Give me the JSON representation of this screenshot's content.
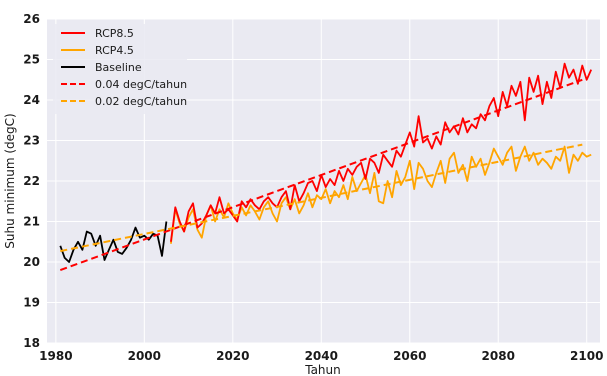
{
  "chart_data": {
    "type": "line",
    "title": "",
    "xlabel": "Tahun",
    "ylabel": "Suhu minimum (degC)",
    "xlim": [
      1978,
      2103
    ],
    "ylim": [
      18,
      26
    ],
    "x_ticks": [
      1980,
      2000,
      2020,
      2040,
      2060,
      2080,
      2100
    ],
    "y_ticks": [
      18,
      19,
      20,
      21,
      22,
      23,
      24,
      25,
      26
    ],
    "grid": true,
    "background": "#eaeaf2",
    "legend_position": "top-left",
    "series": [
      {
        "name": "RCP8.5",
        "style": "solid",
        "color": "#ff0000",
        "x_start": 2006,
        "x_step": 1,
        "values": [
          20.5,
          21.35,
          21.0,
          20.75,
          21.25,
          21.45,
          20.85,
          20.95,
          21.15,
          21.4,
          21.2,
          21.6,
          21.2,
          21.3,
          21.15,
          21.0,
          21.5,
          21.35,
          21.55,
          21.4,
          21.3,
          21.5,
          21.6,
          21.45,
          21.35,
          21.6,
          21.75,
          21.3,
          21.9,
          21.5,
          21.7,
          21.95,
          22.0,
          21.75,
          22.15,
          21.85,
          22.05,
          21.9,
          22.25,
          22.0,
          22.3,
          22.15,
          22.35,
          22.45,
          22.05,
          22.55,
          22.45,
          22.2,
          22.65,
          22.5,
          22.35,
          22.75,
          22.6,
          22.9,
          23.2,
          22.85,
          23.6,
          22.95,
          23.05,
          22.8,
          23.1,
          22.9,
          23.45,
          23.2,
          23.35,
          23.15,
          23.55,
          23.2,
          23.4,
          23.3,
          23.65,
          23.5,
          23.85,
          24.05,
          23.6,
          24.2,
          23.85,
          24.35,
          24.1,
          24.45,
          23.5,
          24.55,
          24.2,
          24.6,
          23.9,
          24.45,
          24.05,
          24.7,
          24.3,
          24.9,
          24.55,
          24.75,
          24.4,
          24.85,
          24.5,
          24.75
        ]
      },
      {
        "name": "RCP4.5",
        "style": "solid",
        "color": "#ffa500",
        "x_start": 2006,
        "x_step": 1,
        "values": [
          20.45,
          21.3,
          20.95,
          20.75,
          21.1,
          21.3,
          20.8,
          20.6,
          21.15,
          21.4,
          21.0,
          21.3,
          21.1,
          21.45,
          21.2,
          21.05,
          21.35,
          21.15,
          21.4,
          21.25,
          21.05,
          21.35,
          21.5,
          21.2,
          21.0,
          21.45,
          21.6,
          21.3,
          21.55,
          21.2,
          21.4,
          21.7,
          21.35,
          21.65,
          21.55,
          21.8,
          21.45,
          21.75,
          21.6,
          21.9,
          21.55,
          22.1,
          21.75,
          21.95,
          22.15,
          21.7,
          22.2,
          21.5,
          21.45,
          22.0,
          21.6,
          22.25,
          21.9,
          22.1,
          22.5,
          21.8,
          22.45,
          22.3,
          22.0,
          21.85,
          22.2,
          22.5,
          21.95,
          22.55,
          22.7,
          22.2,
          22.4,
          22.0,
          22.6,
          22.35,
          22.55,
          22.15,
          22.45,
          22.8,
          22.6,
          22.4,
          22.7,
          22.85,
          22.25,
          22.6,
          22.85,
          22.5,
          22.7,
          22.4,
          22.55,
          22.45,
          22.3,
          22.6,
          22.5,
          22.85,
          22.2,
          22.65,
          22.5,
          22.7,
          22.6,
          22.65
        ]
      },
      {
        "name": "Baseline",
        "style": "solid",
        "color": "#000000",
        "x_start": 1981,
        "x_step": 1,
        "values": [
          20.4,
          20.1,
          20.0,
          20.3,
          20.5,
          20.3,
          20.75,
          20.7,
          20.4,
          20.65,
          20.05,
          20.3,
          20.55,
          20.25,
          20.2,
          20.35,
          20.55,
          20.85,
          20.6,
          20.65,
          20.55,
          20.7,
          20.65,
          20.15,
          21.0
        ]
      },
      {
        "name": "0.04 degC/tahun",
        "style": "dashed",
        "color": "#ff0000",
        "x": [
          1981,
          2099
        ],
        "values": [
          19.8,
          24.5
        ]
      },
      {
        "name": "0.02 degC/tahun",
        "style": "dashed",
        "color": "#ffa500",
        "x": [
          1981,
          2099
        ],
        "values": [
          20.27,
          22.9
        ]
      }
    ]
  }
}
